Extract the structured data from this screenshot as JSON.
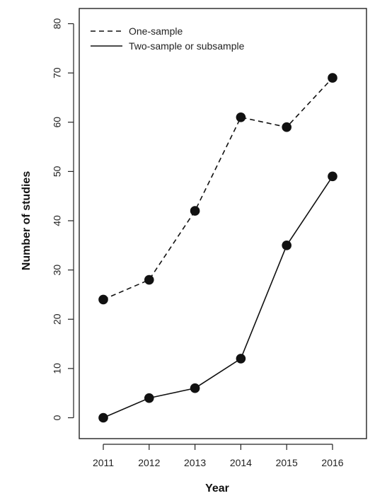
{
  "chart_data": {
    "type": "line",
    "title": "",
    "xlabel": "Year",
    "ylabel": "Number of studies",
    "x": [
      2011,
      2012,
      2013,
      2014,
      2015,
      2016
    ],
    "xticks": [
      "2011",
      "2012",
      "2013",
      "2014",
      "2015",
      "2016"
    ],
    "yticks": [
      "0",
      "10",
      "20",
      "30",
      "40",
      "50",
      "60",
      "70",
      "80"
    ],
    "ylim": [
      0,
      80
    ],
    "grid": false,
    "legend_position": "top-left",
    "series": [
      {
        "name": "One-sample",
        "line_style": "dashed",
        "color": "#111111",
        "values": [
          24,
          28,
          42,
          61,
          59,
          69
        ]
      },
      {
        "name": "Two-sample or subsample",
        "line_style": "solid",
        "color": "#111111",
        "values": [
          0,
          4,
          6,
          12,
          35,
          49
        ]
      }
    ]
  }
}
